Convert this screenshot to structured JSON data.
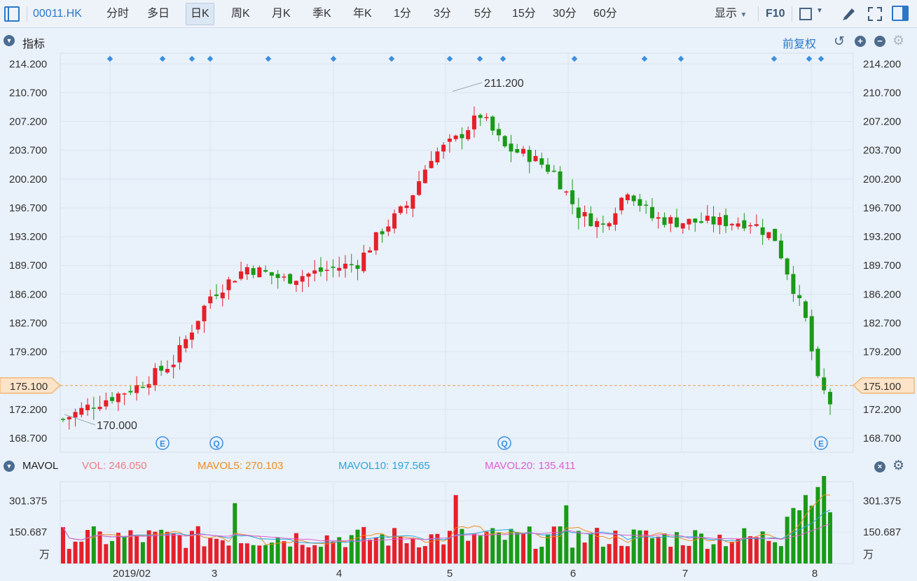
{
  "toolbar": {
    "symbol": "00011.HK",
    "periods": [
      "分时",
      "多日",
      "日K",
      "周K",
      "月K",
      "季K",
      "年K",
      "1分",
      "3分",
      "5分",
      "15分",
      "30分",
      "60分"
    ],
    "active_period": "日K",
    "display_label": "显示",
    "f10_label": "F10"
  },
  "indicator_bar": {
    "title": "指标",
    "adjust_label": "前复权"
  },
  "price_axis": {
    "ticks": [
      "214.200",
      "210.700",
      "207.200",
      "203.700",
      "200.200",
      "196.700",
      "193.200",
      "189.700",
      "186.200",
      "182.700",
      "179.200",
      "172.200",
      "168.700"
    ],
    "current_price": "175.100",
    "high_label": "211.200",
    "low_label": "170.000"
  },
  "events": {
    "markers": [
      "E",
      "Q",
      "Q",
      "E"
    ]
  },
  "volume_panel": {
    "title": "MAVOL",
    "vol_label": "VOL:",
    "vol_value": "246.050",
    "ma5_label": "MAVOL5:",
    "ma5_value": "270.103",
    "ma10_label": "MAVOL10:",
    "ma10_value": "197.565",
    "ma20_label": "MAVOL20:",
    "ma20_value": "135.411",
    "ticks": [
      "301.375",
      "150.687"
    ],
    "unit": "万"
  },
  "x_axis": {
    "labels": [
      "2019/02",
      "3",
      "4",
      "5",
      "6",
      "7",
      "8"
    ]
  },
  "colors": {
    "up": "#e5202a",
    "down": "#1a9a17",
    "accent": "#2b78c9",
    "current_price_bg": "#fde3c8",
    "current_price_line": "#f0a04a",
    "ma5": "#f08c1c",
    "ma10": "#2aa5dc",
    "ma20": "#e05fd0"
  },
  "chart_data": {
    "type": "candlestick",
    "price_range": [
      167.0,
      215.5
    ],
    "volume_range": [
      0,
      420
    ],
    "last_volume": 246.05,
    "max_label_value": 211.2,
    "min_label_value": 170.0
  }
}
